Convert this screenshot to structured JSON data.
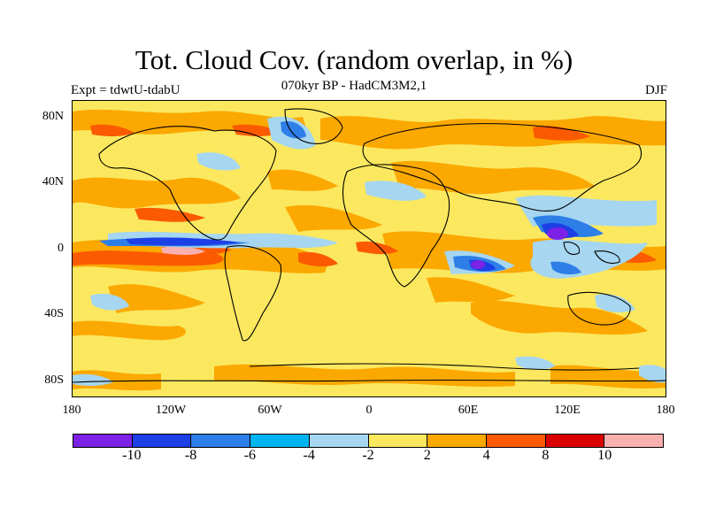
{
  "title": "Tot. Cloud Cov. (random overlap, in %)",
  "subtitle": "070kyr BP - HadCM3M2,1",
  "experiment": "Expt = tdwtU-tdabU",
  "season": "DJF",
  "lat_labels": [
    "80N",
    "40N",
    "0",
    "40S",
    "80S"
  ],
  "lat_values": [
    80,
    40,
    0,
    -40,
    -80
  ],
  "lon_labels": [
    "180",
    "120W",
    "60W",
    "0",
    "60E",
    "120E",
    "180"
  ],
  "lon_values": [
    -180,
    -120,
    -60,
    0,
    60,
    120,
    180
  ],
  "colorbar": {
    "colors": [
      "#7b22e6",
      "#1c3fe6",
      "#2e7ee8",
      "#00b4f0",
      "#a6d6f0",
      "#fbe85f",
      "#fba800",
      "#fb5a00",
      "#d90000",
      "#fbb0b0"
    ],
    "labels": [
      "-10",
      "-8",
      "-6",
      "-4",
      "-2",
      "2",
      "4",
      "8",
      "10"
    ]
  }
}
